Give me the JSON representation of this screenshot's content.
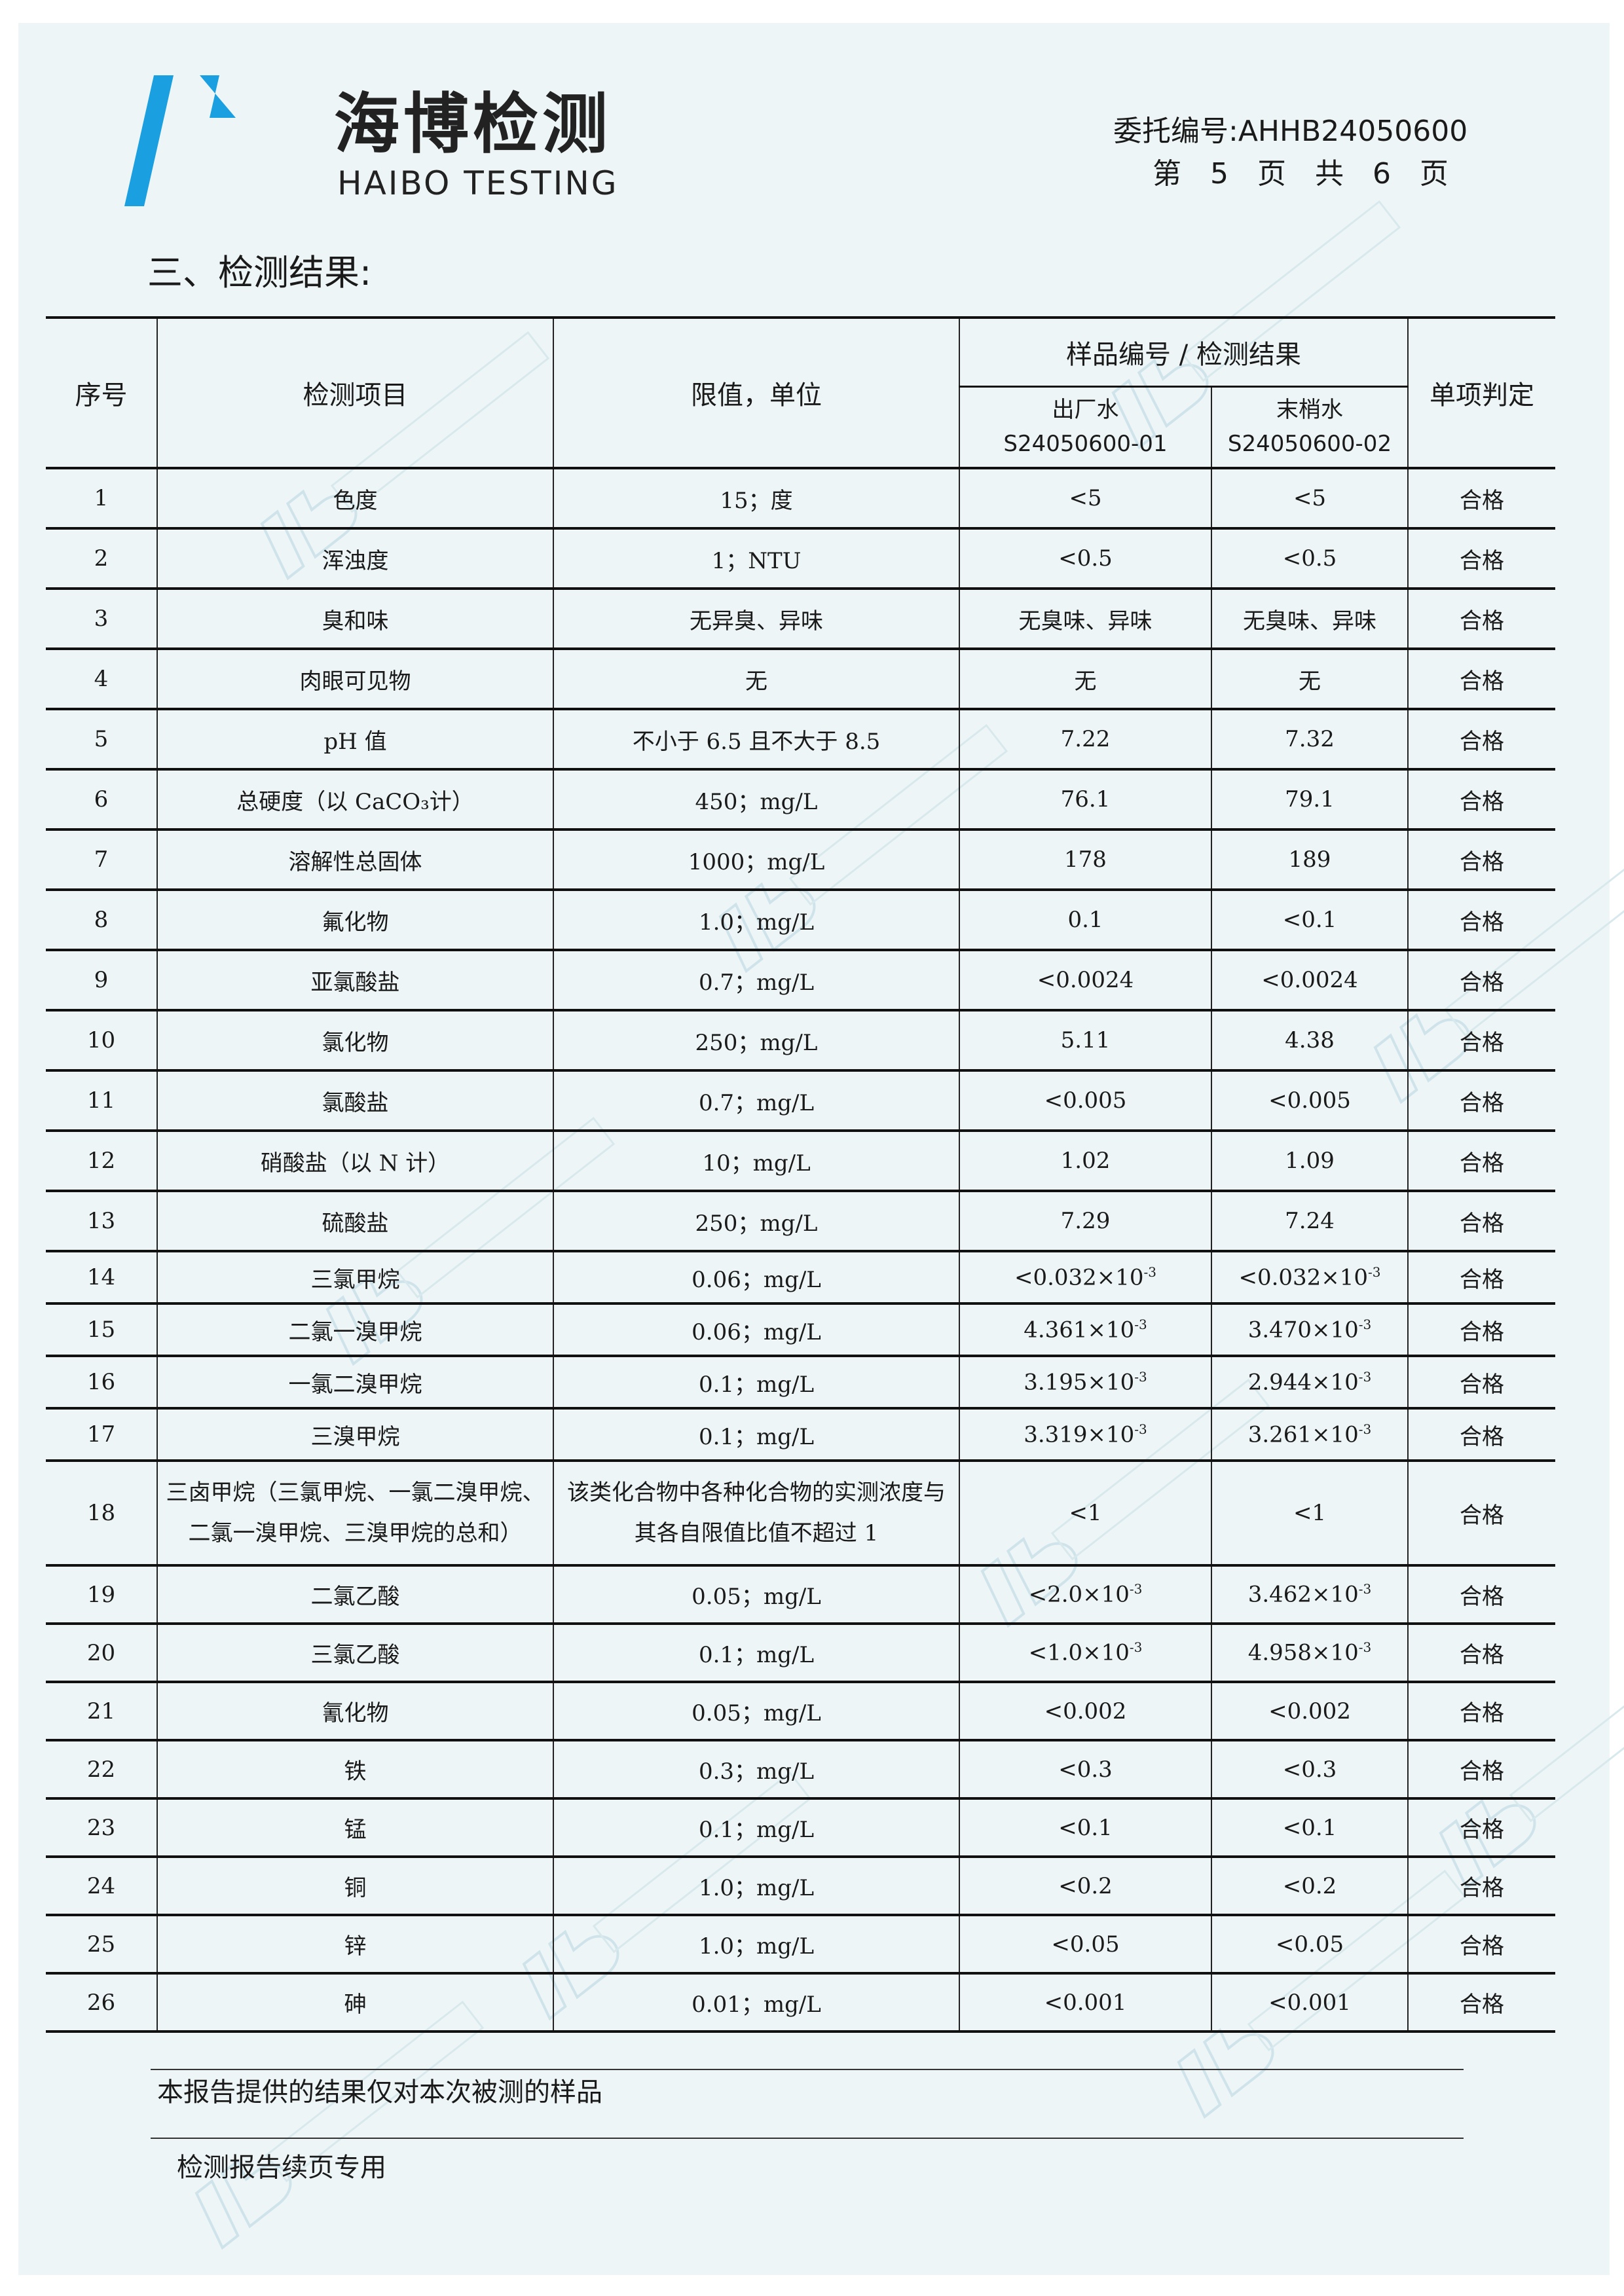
{
  "header": {
    "logo_cn": "海博检测",
    "logo_en": "HAIBO TESTING",
    "ref_label": "委托编号:",
    "ref_no": "AHHB24050600",
    "page_info": "第 5 页 共 6 页",
    "brand_color": "#1a9fe0"
  },
  "section_title": "三、检测结果:",
  "table": {
    "headers": {
      "seq": "序号",
      "item": "检测项目",
      "limit": "限值，单位",
      "group": "样品编号 / 检测结果",
      "sample1_name": "出厂水",
      "sample1_id": "S24050600-01",
      "sample2_name": "末梢水",
      "sample2_id": "S24050600-02",
      "judgement": "单项判定"
    },
    "rows": [
      {
        "seq": "1",
        "item": "色度",
        "limit": "15；度",
        "r1": "<5",
        "r2": "<5",
        "j": "合格"
      },
      {
        "seq": "2",
        "item": "浑浊度",
        "limit": "1；NTU",
        "r1": "<0.5",
        "r2": "<0.5",
        "j": "合格"
      },
      {
        "seq": "3",
        "item": "臭和味",
        "limit": "无异臭、异味",
        "r1": "无臭味、异味",
        "r2": "无臭味、异味",
        "j": "合格"
      },
      {
        "seq": "4",
        "item": "肉眼可见物",
        "limit": "无",
        "r1": "无",
        "r2": "无",
        "j": "合格"
      },
      {
        "seq": "5",
        "item": "pH 值",
        "limit": "不小于 6.5 且不大于 8.5",
        "r1": "7.22",
        "r2": "7.32",
        "j": "合格"
      },
      {
        "seq": "6",
        "item": "总硬度（以 CaCO₃计）",
        "limit": "450；mg/L",
        "r1": "76.1",
        "r2": "79.1",
        "j": "合格"
      },
      {
        "seq": "7",
        "item": "溶解性总固体",
        "limit": "1000；mg/L",
        "r1": "178",
        "r2": "189",
        "j": "合格"
      },
      {
        "seq": "8",
        "item": "氟化物",
        "limit": "1.0；mg/L",
        "r1": "0.1",
        "r2": "<0.1",
        "j": "合格"
      },
      {
        "seq": "9",
        "item": "亚氯酸盐",
        "limit": "0.7；mg/L",
        "r1": "<0.0024",
        "r2": "<0.0024",
        "j": "合格"
      },
      {
        "seq": "10",
        "item": "氯化物",
        "limit": "250；mg/L",
        "r1": "5.11",
        "r2": "4.38",
        "j": "合格"
      },
      {
        "seq": "11",
        "item": "氯酸盐",
        "limit": "0.7；mg/L",
        "r1": "<0.005",
        "r2": "<0.005",
        "j": "合格"
      },
      {
        "seq": "12",
        "item": "硝酸盐（以 N 计）",
        "limit": "10；mg/L",
        "r1": "1.02",
        "r2": "1.09",
        "j": "合格"
      },
      {
        "seq": "13",
        "item": "硫酸盐",
        "limit": "250；mg/L",
        "r1": "7.29",
        "r2": "7.24",
        "j": "合格"
      },
      {
        "seq": "14",
        "item": "三氯甲烷",
        "limit": "0.06；mg/L",
        "r1": "<0.032×10",
        "r1_exp": "-3",
        "r2": "<0.032×10",
        "r2_exp": "-3",
        "j": "合格"
      },
      {
        "seq": "15",
        "item": "二氯一溴甲烷",
        "limit": "0.06；mg/L",
        "r1": "4.361×10",
        "r1_exp": "-3",
        "r2": "3.470×10",
        "r2_exp": "-3",
        "j": "合格"
      },
      {
        "seq": "16",
        "item": "一氯二溴甲烷",
        "limit": "0.1；mg/L",
        "r1": "3.195×10",
        "r1_exp": "-3",
        "r2": "2.944×10",
        "r2_exp": "-3",
        "j": "合格"
      },
      {
        "seq": "17",
        "item": "三溴甲烷",
        "limit": "0.1；mg/L",
        "r1": "3.319×10",
        "r1_exp": "-3",
        "r2": "3.261×10",
        "r2_exp": "-3",
        "j": "合格"
      },
      {
        "seq": "18",
        "item": "三卤甲烷（三氯甲烷、一氯二溴甲烷、二氯一溴甲烷、三溴甲烷的总和）",
        "limit": "该类化合物中各种化合物的实测浓度与其各自限值比值不超过 1",
        "r1": "<1",
        "r2": "<1",
        "j": "合格"
      },
      {
        "seq": "19",
        "item": "二氯乙酸",
        "limit": "0.05；mg/L",
        "r1": "<2.0×10",
        "r1_exp": "-3",
        "r2": "3.462×10",
        "r2_exp": "-3",
        "j": "合格"
      },
      {
        "seq": "20",
        "item": "三氯乙酸",
        "limit": "0.1；mg/L",
        "r1": "<1.0×10",
        "r1_exp": "-3",
        "r2": "4.958×10",
        "r2_exp": "-3",
        "j": "合格"
      },
      {
        "seq": "21",
        "item": "氰化物",
        "limit": "0.05；mg/L",
        "r1": "<0.002",
        "r2": "<0.002",
        "j": "合格"
      },
      {
        "seq": "22",
        "item": "铁",
        "limit": "0.3；mg/L",
        "r1": "<0.3",
        "r2": "<0.3",
        "j": "合格"
      },
      {
        "seq": "23",
        "item": "锰",
        "limit": "0.1；mg/L",
        "r1": "<0.1",
        "r2": "<0.1",
        "j": "合格"
      },
      {
        "seq": "24",
        "item": "铜",
        "limit": "1.0；mg/L",
        "r1": "<0.2",
        "r2": "<0.2",
        "j": "合格"
      },
      {
        "seq": "25",
        "item": "锌",
        "limit": "1.0；mg/L",
        "r1": "<0.05",
        "r2": "<0.05",
        "j": "合格"
      },
      {
        "seq": "26",
        "item": "砷",
        "limit": "0.01；mg/L",
        "r1": "<0.001",
        "r2": "<0.001",
        "j": "合格"
      }
    ]
  },
  "footer": {
    "disclaimer": "本报告提供的结果仅对本次被测的样品",
    "continuation": "检测报告续页专用"
  }
}
